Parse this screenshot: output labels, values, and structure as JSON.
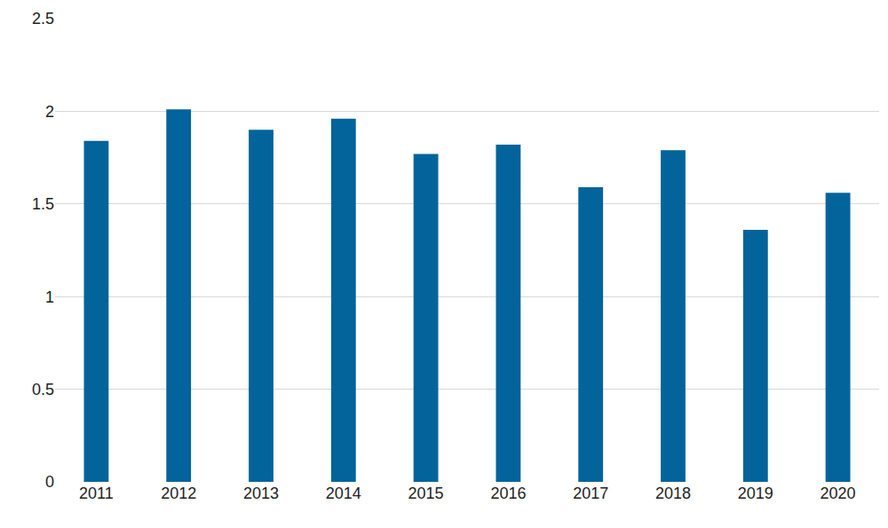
{
  "chart_data": {
    "type": "bar",
    "categories": [
      "2011",
      "2012",
      "2013",
      "2014",
      "2015",
      "2016",
      "2017",
      "2018",
      "2019",
      "2020"
    ],
    "values": [
      1.84,
      2.01,
      1.9,
      1.96,
      1.77,
      1.82,
      1.59,
      1.79,
      1.36,
      1.56
    ],
    "color": "#02649b",
    "ylim": [
      0,
      2.5
    ],
    "yticks": [
      0,
      0.5,
      1,
      1.5,
      2,
      2.5
    ],
    "grid": true
  }
}
